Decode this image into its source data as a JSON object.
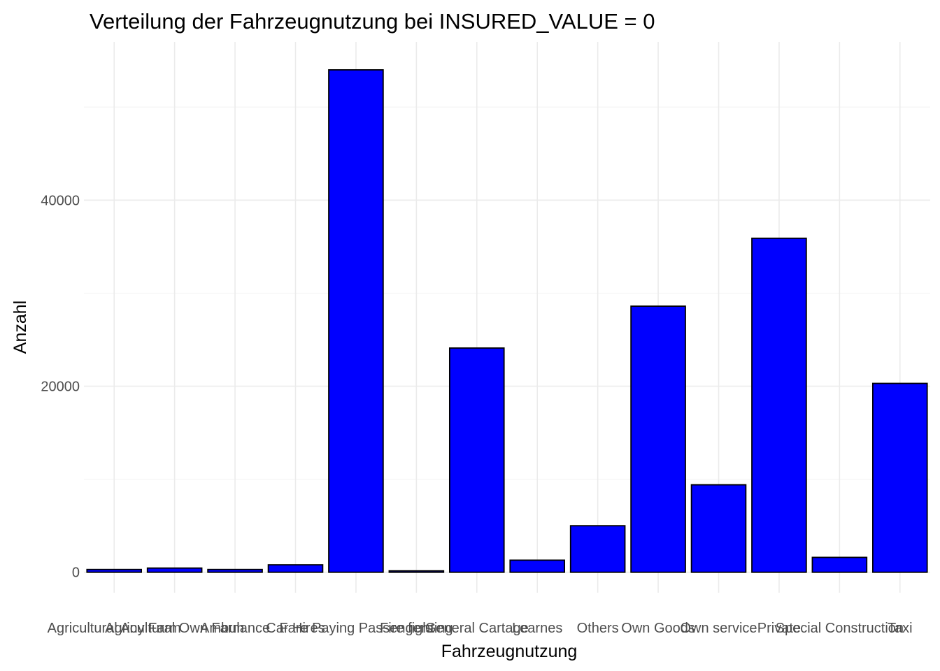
{
  "chart_data": {
    "type": "bar",
    "title": "Verteilung der Fahrzeugnutzung bei INSURED_VALUE = 0",
    "xlabel": "Fahrzeugnutzung",
    "ylabel": "Anzahl",
    "categories": [
      "Agricultural Any Farm",
      "Agricultural Own Farm",
      "Ambulance",
      "Car Hires",
      "Fare Paying Passengers",
      "Fire fighting",
      "General Cartage",
      "Learnes",
      "Others",
      "Own Goods",
      "Own service",
      "Private",
      "Special Construction",
      "Taxi"
    ],
    "values": [
      300,
      450,
      300,
      800,
      54000,
      150,
      24100,
      1300,
      5000,
      28600,
      9400,
      35900,
      1600,
      20300
    ],
    "ylim": [
      -2200,
      57000
    ],
    "yticks": [
      0,
      20000,
      40000
    ],
    "grid": true,
    "legend": "none",
    "colors": {
      "bar_fill": "#0000ff",
      "bar_outline": "#000000"
    }
  }
}
